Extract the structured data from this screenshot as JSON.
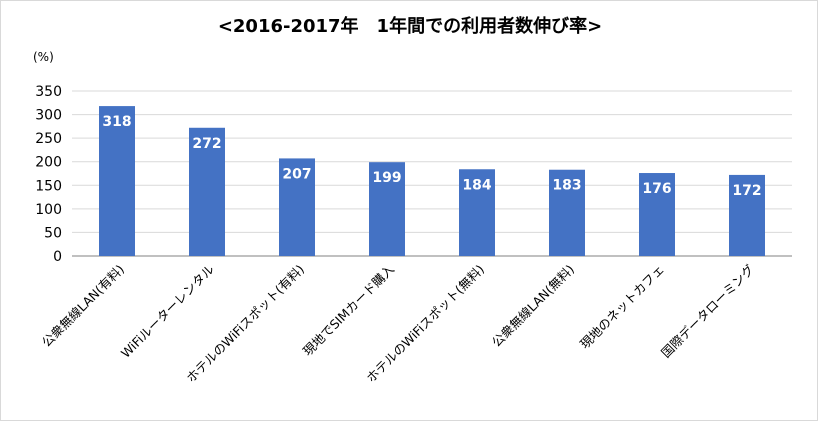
{
  "chart_data": {
    "type": "bar",
    "title": "<2016-2017年　1年間での利用者数伸び率>",
    "unit_label": "(%)",
    "categories": [
      "公衆無線LAN(有料)",
      "WiFiルーターレンタル",
      "ホテルのWiFiスポット(有料)",
      "現地でSIMカード購入",
      "ホテルのWiFiスポット(無料)",
      "公衆無線LAN(無料)",
      "現地のネットカフェ",
      "国際データローミング"
    ],
    "values": [
      318,
      272,
      207,
      199,
      184,
      183,
      176,
      172
    ],
    "ylim": [
      0,
      350
    ],
    "yticks": [
      0,
      50,
      100,
      150,
      200,
      250,
      300,
      350
    ],
    "grid": true,
    "bar_color": "#4472c4"
  }
}
